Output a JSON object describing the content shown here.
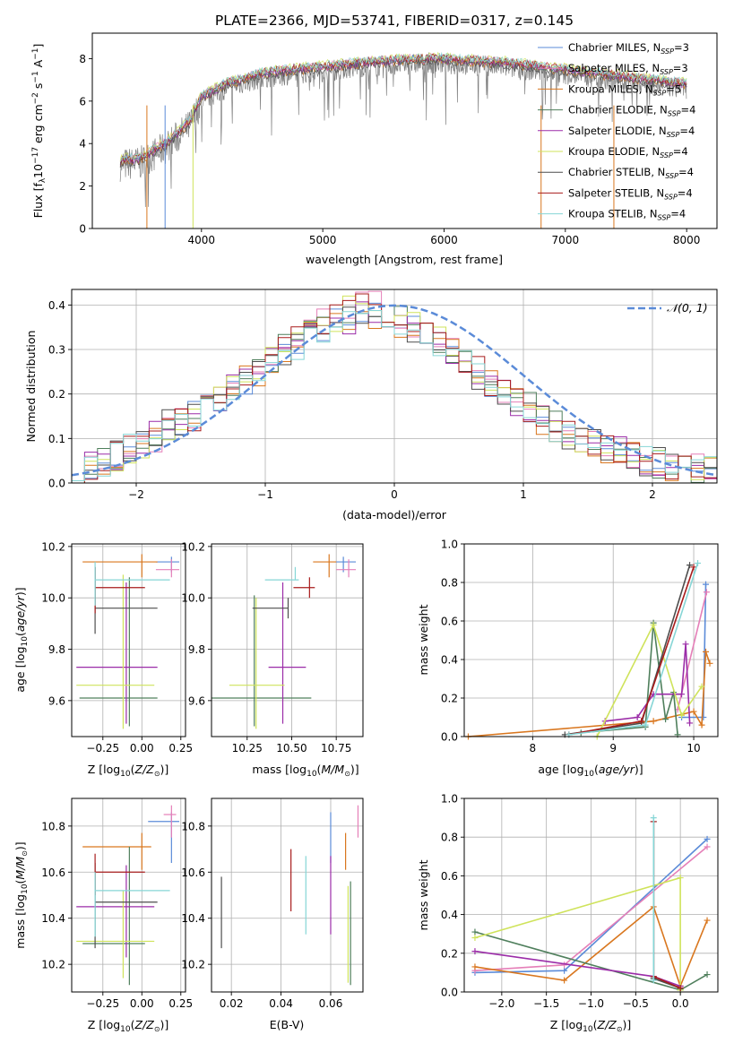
{
  "figure": {
    "title": "PLATE=2366, MJD=53741, FIBERID=0317, z=0.145"
  },
  "colors": {
    "Chabrier MILES": "#5b8bd8",
    "Salpeter MILES": "#e57fb8",
    "Kroupa MILES": "#d9771f",
    "Chabrier ELODIE": "#4f7f5c",
    "Salpeter ELODIE": "#9b2ca8",
    "Kroupa ELODIE": "#cfe35b",
    "Chabrier STELIB": "#4d4d4d",
    "Salpeter STELIB": "#a81c1c",
    "Kroupa STELIB": "#86d6d6",
    "data": "#808080",
    "normal": "#5b8bd8"
  },
  "chart_data": [
    {
      "type": "line",
      "title": "PLATE=2366, MJD=53741, FIBERID=0317, z=0.145",
      "xlabel": "wavelength [Angstrom, rest frame]",
      "ylabel": "Flux [f_λ 10^-17 erg cm^-2 s^-1 A^-1]",
      "xlim": [
        3100,
        8250
      ],
      "ylim": [
        0,
        9.2
      ],
      "xticks": [
        4000,
        5000,
        6000,
        7000,
        8000
      ],
      "yticks": [
        0,
        2,
        4,
        6,
        8
      ],
      "x": [
        3330,
        3500,
        3700,
        3900,
        4000,
        4200,
        4500,
        4800,
        5000,
        5300,
        5600,
        5900,
        6200,
        6500,
        6800,
        7100,
        7400,
        7700,
        8000
      ],
      "series": [
        {
          "name": "data",
          "values": [
            3.0,
            3.1,
            3.8,
            4.8,
            6.0,
            6.6,
            7.1,
            7.3,
            7.4,
            7.6,
            7.7,
            7.8,
            7.7,
            7.6,
            7.4,
            7.2,
            7.0,
            6.8,
            6.6
          ]
        },
        {
          "name": "Kroupa STELIB, N_SSP=4",
          "values": [
            3.1,
            3.2,
            3.9,
            5.0,
            6.2,
            6.8,
            7.2,
            7.4,
            7.5,
            7.7,
            7.8,
            7.9,
            7.8,
            7.7,
            7.5,
            7.3,
            7.1,
            6.9,
            6.7
          ]
        }
      ],
      "legend": {
        "position": "right",
        "entries": [
          "Chabrier MILES, N_SSP=3",
          "Salpeter MILES, N_SSP=3",
          "Kroupa MILES, N_SSP=5",
          "Chabrier ELODIE, N_SSP=4",
          "Salpeter ELODIE, N_SSP=4",
          "Kroupa ELODIE, N_SSP=4",
          "Chabrier STELIB, N_SSP=4",
          "Salpeter STELIB, N_SSP=4",
          "Kroupa STELIB, N_SSP=4"
        ]
      },
      "grid": false
    },
    {
      "type": "line",
      "xlabel": "(data-model)/error",
      "ylabel": "Normed distribution",
      "xlim": [
        -2.5,
        2.5
      ],
      "ylim": [
        0,
        0.435
      ],
      "xticks": [
        -2,
        -1,
        0,
        1,
        2
      ],
      "yticks": [
        0.0,
        0.1,
        0.2,
        0.3,
        0.4
      ],
      "grid": true,
      "legend": {
        "position": "top-right",
        "entries": [
          "N(0,1)"
        ]
      },
      "bin_edges_step": 0.1,
      "histograms": [
        {
          "name": "Chabrier MILES",
          "values": [
            0.04,
            0.04,
            0.05,
            0.06,
            0.08,
            0.09,
            0.11,
            0.13,
            0.14,
            0.15,
            0.17,
            0.19,
            0.21,
            0.23,
            0.25,
            0.27,
            0.29,
            0.31,
            0.33,
            0.35,
            0.36,
            0.37,
            0.38,
            0.38,
            0.37,
            0.36,
            0.35,
            0.33,
            0.31,
            0.29,
            0.27,
            0.24,
            0.22,
            0.2,
            0.18,
            0.16,
            0.14,
            0.12,
            0.11,
            0.1,
            0.09,
            0.08,
            0.07,
            0.06,
            0.05,
            0.05,
            0.04,
            0.04,
            0.03,
            0.03
          ]
        },
        {
          "name": "Kroupa STELIB",
          "values": [
            0.03,
            0.04,
            0.05,
            0.06,
            0.07,
            0.09,
            0.1,
            0.12,
            0.14,
            0.15,
            0.17,
            0.19,
            0.22,
            0.24,
            0.26,
            0.28,
            0.3,
            0.32,
            0.34,
            0.36,
            0.37,
            0.39,
            0.4,
            0.4,
            0.38,
            0.37,
            0.36,
            0.34,
            0.32,
            0.3,
            0.28,
            0.25,
            0.23,
            0.21,
            0.19,
            0.17,
            0.15,
            0.13,
            0.11,
            0.1,
            0.09,
            0.08,
            0.07,
            0.06,
            0.05,
            0.04,
            0.04,
            0.03,
            0.03,
            0.03
          ]
        }
      ],
      "normal": {
        "name": "N(0,1)",
        "mean": 0,
        "sigma": 1
      }
    },
    {
      "type": "scatter",
      "xlabel": "Z [log10(Z/Z_sun)]",
      "ylabel": "age  [log10(age/yr)]",
      "xticks": [
        -0.25,
        0.0,
        0.25
      ],
      "yticks": [
        9.6,
        9.8,
        10.0,
        10.2
      ],
      "xlim": [
        -0.45,
        0.28
      ],
      "ylim": [
        9.46,
        10.21
      ],
      "grid": true,
      "points": [
        {
          "name": "Chabrier MILES",
          "x": 0.19,
          "y": 10.14,
          "xerr": [
            0.1,
            0.05
          ],
          "yerr": [
            0.04,
            0.02
          ]
        },
        {
          "name": "Salpeter MILES",
          "x": 0.19,
          "y": 10.11,
          "xerr": [
            0.1,
            0.05
          ],
          "yerr": [
            0.03,
            0.04
          ]
        },
        {
          "name": "Kroupa MILES",
          "x": 0.0,
          "y": 10.14,
          "xerr": [
            0.38,
            0.1
          ],
          "yerr": [
            0.06,
            0.03
          ]
        },
        {
          "name": "Chabrier ELODIE",
          "x": -0.08,
          "y": 9.61,
          "xerr": [
            0.32,
            0.18
          ],
          "yerr": [
            0.11,
            0.47
          ]
        },
        {
          "name": "Salpeter ELODIE",
          "x": -0.1,
          "y": 9.73,
          "xerr": [
            0.32,
            0.2
          ],
          "yerr": [
            0.22,
            0.33
          ]
        },
        {
          "name": "Kroupa ELODIE",
          "x": -0.12,
          "y": 9.66,
          "xerr": [
            0.3,
            0.2
          ],
          "yerr": [
            0.17,
            0.43
          ]
        },
        {
          "name": "Chabrier STELIB",
          "x": -0.3,
          "y": 9.96,
          "xerr": [
            0.0,
            0.4
          ],
          "yerr": [
            0.1,
            0.16
          ]
        },
        {
          "name": "Salpeter STELIB",
          "x": -0.3,
          "y": 10.04,
          "xerr": [
            0.0,
            0.32
          ],
          "yerr": [
            0.1,
            0.08
          ]
        },
        {
          "name": "Kroupa STELIB",
          "x": -0.3,
          "y": 10.07,
          "xerr": [
            0.0,
            0.48
          ],
          "yerr": [
            0.1,
            0.07
          ]
        }
      ]
    },
    {
      "type": "scatter",
      "xlabel": "mass [log10(M/M_sun)]",
      "ylabel": "",
      "xticks": [
        10.25,
        10.5,
        10.75
      ],
      "yticks": [
        9.6,
        9.8,
        10.0,
        10.2
      ],
      "xlim": [
        10.05,
        10.9
      ],
      "ylim": [
        9.46,
        10.21
      ],
      "grid": true,
      "points": [
        {
          "name": "Chabrier MILES",
          "x": 10.79,
          "y": 10.14,
          "xerr": [
            0.04,
            0.07
          ],
          "yerr": [
            0.04,
            0.02
          ]
        },
        {
          "name": "Salpeter MILES",
          "x": 10.82,
          "y": 10.11,
          "xerr": [
            0.07,
            0.04
          ],
          "yerr": [
            0.03,
            0.04
          ]
        },
        {
          "name": "Kroupa MILES",
          "x": 10.71,
          "y": 10.14,
          "xerr": [
            0.09,
            0.04
          ],
          "yerr": [
            0.06,
            0.03
          ]
        },
        {
          "name": "Chabrier ELODIE",
          "x": 10.29,
          "y": 9.61,
          "xerr": [
            0.24,
            0.32
          ],
          "yerr": [
            0.11,
            0.4
          ]
        },
        {
          "name": "Salpeter ELODIE",
          "x": 10.45,
          "y": 9.73,
          "xerr": [
            0.08,
            0.13
          ],
          "yerr": [
            0.22,
            0.33
          ]
        },
        {
          "name": "Kroupa ELODIE",
          "x": 10.3,
          "y": 9.66,
          "xerr": [
            0.15,
            0.16
          ],
          "yerr": [
            0.17,
            0.34
          ]
        },
        {
          "name": "Chabrier STELIB",
          "x": 10.48,
          "y": 9.96,
          "xerr": [
            0.2,
            0.0
          ],
          "yerr": [
            0.04,
            0.04
          ]
        },
        {
          "name": "Salpeter STELIB",
          "x": 10.6,
          "y": 10.04,
          "xerr": [
            0.09,
            0.03
          ],
          "yerr": [
            0.04,
            0.04
          ]
        },
        {
          "name": "Kroupa STELIB",
          "x": 10.52,
          "y": 10.07,
          "xerr": [
            0.17,
            0.02
          ],
          "yerr": [
            0.0,
            0.05
          ]
        }
      ]
    },
    {
      "type": "line",
      "xlabel": "age  [log10(age/yr)]",
      "ylabel": "mass weight",
      "xticks": [
        8,
        9,
        10
      ],
      "yticks": [
        0.0,
        0.2,
        0.4,
        0.6,
        0.8,
        1.0
      ],
      "xlim": [
        7.15,
        10.3
      ],
      "ylim": [
        0,
        1
      ],
      "grid": true,
      "series": [
        {
          "name": "Chabrier MILES",
          "x": [
            9.85,
            10.12,
            10.15
          ],
          "values": [
            0.1,
            0.1,
            0.79
          ]
        },
        {
          "name": "Salpeter MILES",
          "x": [
            9.8,
            10.16
          ],
          "values": [
            0.14,
            0.75
          ]
        },
        {
          "name": "Kroupa MILES",
          "x": [
            7.2,
            9.5,
            10.0,
            10.1,
            10.15,
            10.2
          ],
          "values": [
            0.0,
            0.08,
            0.13,
            0.06,
            0.44,
            0.38
          ]
        },
        {
          "name": "Chabrier ELODIE",
          "x": [
            8.6,
            9.4,
            9.5,
            9.65,
            9.75,
            9.8
          ],
          "values": [
            0.02,
            0.05,
            0.59,
            0.09,
            0.23,
            0.01
          ]
        },
        {
          "name": "Salpeter ELODIE",
          "x": [
            8.9,
            9.3,
            9.5,
            9.85,
            9.9,
            9.95
          ],
          "values": [
            0.08,
            0.1,
            0.22,
            0.22,
            0.48,
            0.07
          ]
        },
        {
          "name": "Kroupa ELODIE",
          "x": [
            8.8,
            9.5,
            9.85,
            10.1
          ],
          "values": [
            0.0,
            0.58,
            0.11,
            0.26
          ]
        },
        {
          "name": "Chabrier STELIB",
          "x": [
            8.4,
            9.35,
            9.95
          ],
          "values": [
            0.01,
            0.07,
            0.89
          ]
        },
        {
          "name": "Salpeter STELIB",
          "x": [
            8.45,
            9.35,
            10.0
          ],
          "values": [
            0.01,
            0.08,
            0.88
          ]
        },
        {
          "name": "Kroupa STELIB",
          "x": [
            8.45,
            9.4,
            10.05
          ],
          "values": [
            0.01,
            0.06,
            0.9
          ]
        }
      ]
    },
    {
      "type": "scatter",
      "xlabel": "Z [log10(Z/Z_sun)]",
      "ylabel": "mass [log10(M/M_sun)]",
      "xticks": [
        -0.25,
        0.0,
        0.25
      ],
      "yticks": [
        10.2,
        10.4,
        10.6,
        10.8
      ],
      "xlim": [
        -0.45,
        0.28
      ],
      "ylim": [
        10.08,
        10.92
      ],
      "grid": true,
      "points": [
        {
          "name": "Chabrier MILES",
          "x": 0.19,
          "y": 10.82,
          "xerr": [
            0.15,
            0.05
          ],
          "yerr": [
            0.18,
            0.04
          ]
        },
        {
          "name": "Salpeter MILES",
          "x": 0.19,
          "y": 10.85,
          "xerr": [
            0.05,
            0.03
          ],
          "yerr": [
            0.1,
            0.04
          ]
        },
        {
          "name": "Kroupa MILES",
          "x": 0.0,
          "y": 10.71,
          "xerr": [
            0.38,
            0.06
          ],
          "yerr": [
            0.1,
            0.06
          ]
        },
        {
          "name": "Chabrier ELODIE",
          "x": -0.08,
          "y": 10.29,
          "xerr": [
            0.3,
            0.1
          ],
          "yerr": [
            0.18,
            0.42
          ]
        },
        {
          "name": "Salpeter ELODIE",
          "x": -0.1,
          "y": 10.45,
          "xerr": [
            0.32,
            0.18
          ],
          "yerr": [
            0.22,
            0.18
          ]
        },
        {
          "name": "Kroupa ELODIE",
          "x": -0.12,
          "y": 10.3,
          "xerr": [
            0.3,
            0.2
          ],
          "yerr": [
            0.16,
            0.22
          ]
        },
        {
          "name": "Chabrier STELIB",
          "x": -0.3,
          "y": 10.47,
          "xerr": [
            0.0,
            0.4
          ],
          "yerr": [
            0.2,
            0.17
          ]
        },
        {
          "name": "Salpeter STELIB",
          "x": -0.3,
          "y": 10.6,
          "xerr": [
            0.0,
            0.32
          ],
          "yerr": [
            0.1,
            0.08
          ]
        },
        {
          "name": "Kroupa STELIB",
          "x": -0.3,
          "y": 10.52,
          "xerr": [
            0.0,
            0.48
          ],
          "yerr": [
            0.2,
            0.08
          ]
        }
      ]
    },
    {
      "type": "scatter",
      "xlabel": "E(B-V)",
      "ylabel": "",
      "xticks": [
        0.02,
        0.04,
        0.06
      ],
      "yticks": [
        10.2,
        10.4,
        10.6,
        10.8
      ],
      "xlim": [
        0.012,
        0.073
      ],
      "ylim": [
        10.08,
        10.92
      ],
      "grid": true,
      "points": [
        {
          "name": "Chabrier MILES",
          "x": 0.06,
          "y": 10.82,
          "yerr": [
            0.18,
            0.04
          ]
        },
        {
          "name": "Salpeter MILES",
          "x": 0.071,
          "y": 10.85,
          "yerr": [
            0.1,
            0.04
          ]
        },
        {
          "name": "Kroupa MILES",
          "x": 0.066,
          "y": 10.71,
          "yerr": [
            0.1,
            0.06
          ]
        },
        {
          "name": "Chabrier ELODIE",
          "x": 0.068,
          "y": 10.29,
          "yerr": [
            0.18,
            0.27
          ]
        },
        {
          "name": "Salpeter ELODIE",
          "x": 0.06,
          "y": 10.45,
          "yerr": [
            0.12,
            0.22
          ]
        },
        {
          "name": "Kroupa ELODIE",
          "x": 0.067,
          "y": 10.3,
          "yerr": [
            0.18,
            0.24
          ]
        },
        {
          "name": "Chabrier STELIB",
          "x": 0.016,
          "y": 10.42,
          "yerr": [
            0.15,
            0.16
          ]
        },
        {
          "name": "Salpeter STELIB",
          "x": 0.044,
          "y": 10.56,
          "yerr": [
            0.13,
            0.14
          ]
        },
        {
          "name": "Kroupa STELIB",
          "x": 0.05,
          "y": 10.5,
          "yerr": [
            0.17,
            0.17
          ]
        }
      ]
    },
    {
      "type": "line",
      "xlabel": "Z [log10(Z/Z_sun)]",
      "ylabel": "mass weight",
      "xticks": [
        -2.0,
        -1.5,
        -1.0,
        -0.5,
        0.0
      ],
      "yticks": [
        0.0,
        0.2,
        0.4,
        0.6,
        0.8,
        1.0
      ],
      "xlim": [
        -2.42,
        0.42
      ],
      "ylim": [
        0,
        1
      ],
      "grid": true,
      "series": [
        {
          "name": "Chabrier MILES",
          "x": [
            -2.3,
            -1.3,
            0.3
          ],
          "values": [
            0.1,
            0.11,
            0.79
          ]
        },
        {
          "name": "Salpeter MILES",
          "x": [
            -2.3,
            -1.3,
            0.3
          ],
          "values": [
            0.11,
            0.14,
            0.75
          ]
        },
        {
          "name": "Kroupa MILES",
          "x": [
            -2.3,
            -1.3,
            -0.3,
            0.0,
            0.3
          ],
          "values": [
            0.13,
            0.06,
            0.44,
            0.03,
            0.37
          ]
        },
        {
          "name": "Chabrier ELODIE",
          "x": [
            -2.3,
            0.0,
            0.3
          ],
          "values": [
            0.31,
            0.01,
            0.09
          ]
        },
        {
          "name": "Salpeter ELODIE",
          "x": [
            -2.3,
            -0.3,
            0.0
          ],
          "values": [
            0.21,
            0.08,
            0.03
          ]
        },
        {
          "name": "Kroupa ELODIE",
          "x": [
            -2.3,
            0.0,
            0.0
          ],
          "values": [
            0.28,
            0.59,
            0.01
          ]
        },
        {
          "name": "Chabrier STELIB",
          "x": [
            -0.3,
            -0.3,
            0.0
          ],
          "values": [
            0.88,
            0.07,
            0.02
          ]
        },
        {
          "name": "Salpeter STELIB",
          "x": [
            -0.3,
            -0.3,
            0.0
          ],
          "values": [
            0.88,
            0.08,
            0.02
          ]
        },
        {
          "name": "Kroupa STELIB",
          "x": [
            -0.3,
            -0.3
          ],
          "values": [
            0.9,
            0.06
          ]
        }
      ]
    }
  ]
}
